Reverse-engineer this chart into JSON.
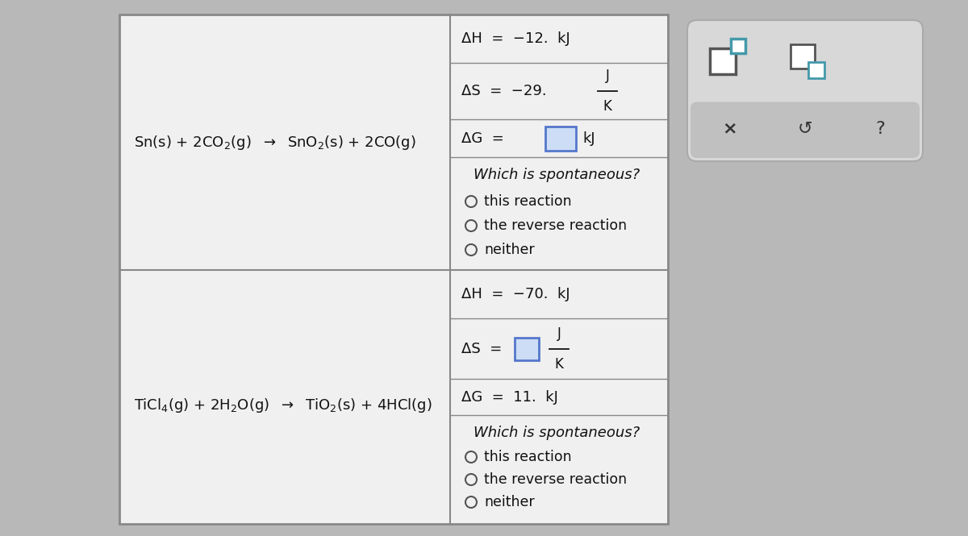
{
  "bg_color": "#b8b8b8",
  "table_bg": "#f0f0f0",
  "table_border_color": "#888888",
  "input_box_color": "#ccddf5",
  "input_box_border": "#5577cc",
  "panel_bg": "#d8d8d8",
  "panel_border": "#aaaaaa",
  "bottom_bar_color": "#c8c8c8",
  "row1_reaction": "Sn(s) + 2CO$_2$(g)  $\\rightarrow$  SnO$_2$(s) + 2CO(g)",
  "row2_reaction": "TiCl$_4$(g) + 2H$_2$O(g)  $\\rightarrow$  TiO$_2$(s) + 4HCl(g)",
  "row1_dH": "ΔH  =  −12.  kJ",
  "row1_dS_left": "ΔS  =  −29.  ",
  "row1_dS_num": "J",
  "row1_dS_den": "K",
  "row1_dG_left": "ΔG  =",
  "row1_dG_unit": "kJ",
  "row2_dH": "ΔH  =  −70.  kJ",
  "row2_dS_left": "ΔS  =  ",
  "row2_dS_num": "J",
  "row2_dS_den": "K",
  "row2_dG": "ΔG  =  11.  kJ",
  "spontaneous_q": "Which is spontaneous?",
  "opt1": "this reaction",
  "opt2": "the reverse reaction",
  "opt3": "neither",
  "toolbar_x": "×",
  "toolbar_undo": "↺",
  "toolbar_q": "?",
  "icon1_dark": "#555555",
  "icon1_teal": "#4499aa",
  "icon2_dark": "#555555",
  "icon2_teal": "#4499aa"
}
